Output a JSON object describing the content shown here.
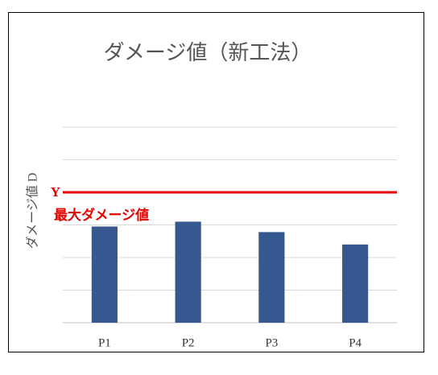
{
  "chart_data": {
    "type": "bar",
    "title": "ダメージ値（新工法）",
    "y_label": "ダメージ値 D",
    "categories": [
      "P1",
      "P2",
      "P3",
      "P4"
    ],
    "values": [
      2.95,
      3.1,
      2.78,
      2.4
    ],
    "color": "#35588f",
    "ylim": [
      0,
      6
    ],
    "yticks": [
      0,
      1,
      2,
      3,
      4,
      5,
      6
    ],
    "grid": true,
    "show_ytick_labels": false,
    "reference_line": {
      "value": 4,
      "label": "Y",
      "description": "最大ダメージ値",
      "color": "#e60000"
    }
  }
}
